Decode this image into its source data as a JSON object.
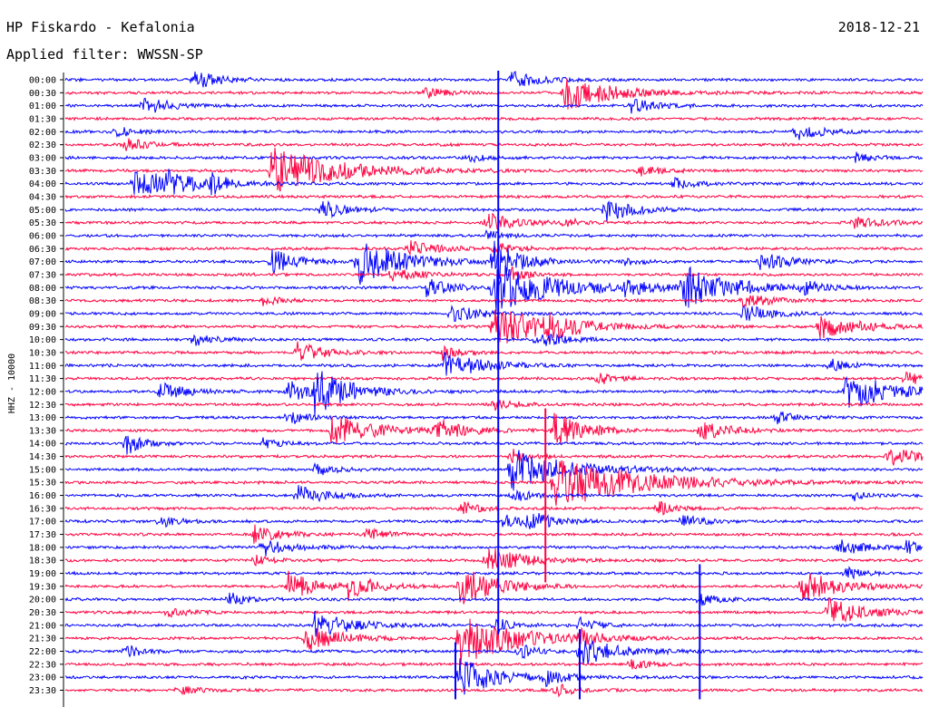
{
  "header": {
    "station": "HP Fiskardo - Kefalonia",
    "date": "2018-12-21",
    "filter": "Applied filter: WWSSN-SP"
  },
  "chart_data": {
    "type": "helicorder",
    "title": "HP Fiskardo - Kefalonia",
    "ylabel": "HHZ - 10000",
    "colors": [
      "#0000ff",
      "#ff0040"
    ],
    "rows": [
      "00:00",
      "00:30",
      "01:00",
      "01:30",
      "02:00",
      "02:30",
      "03:00",
      "03:30",
      "04:00",
      "04:30",
      "05:00",
      "05:30",
      "06:00",
      "06:30",
      "07:00",
      "07:30",
      "08:00",
      "08:30",
      "09:00",
      "09:30",
      "10:00",
      "10:30",
      "11:00",
      "11:30",
      "12:00",
      "12:30",
      "13:00",
      "13:30",
      "14:00",
      "14:30",
      "15:00",
      "15:30",
      "16:00",
      "16:30",
      "17:00",
      "17:30",
      "18:00",
      "18:30",
      "19:00",
      "19:30",
      "20:00",
      "20:30",
      "21:00",
      "21:30",
      "22:00",
      "22:30",
      "23:00",
      "23:30"
    ],
    "events": [
      {
        "row": 0,
        "x": 0.15,
        "a": 10,
        "d": 0.03
      },
      {
        "row": 0,
        "x": 0.52,
        "a": 9,
        "d": 0.03
      },
      {
        "row": 1,
        "x": 0.58,
        "a": 22,
        "d": 0.05
      },
      {
        "row": 1,
        "x": 0.42,
        "a": 6,
        "d": 0.02
      },
      {
        "row": 2,
        "x": 0.09,
        "a": 10,
        "d": 0.03
      },
      {
        "row": 2,
        "x": 0.66,
        "a": 8,
        "d": 0.03
      },
      {
        "row": 4,
        "x": 0.85,
        "a": 10,
        "d": 0.03
      },
      {
        "row": 4,
        "x": 0.06,
        "a": 6,
        "d": 0.02
      },
      {
        "row": 5,
        "x": 0.07,
        "a": 7,
        "d": 0.03
      },
      {
        "row": 6,
        "x": 0.47,
        "a": 5,
        "d": 0.02
      },
      {
        "row": 6,
        "x": 0.92,
        "a": 6,
        "d": 0.02
      },
      {
        "row": 7,
        "x": 0.24,
        "a": 28,
        "d": 0.07
      },
      {
        "row": 7,
        "x": 0.67,
        "a": 6,
        "d": 0.02
      },
      {
        "row": 8,
        "x": 0.08,
        "a": 16,
        "d": 0.05
      },
      {
        "row": 8,
        "x": 0.12,
        "a": 9,
        "d": 0.02
      },
      {
        "row": 8,
        "x": 0.17,
        "a": 9,
        "d": 0.02
      },
      {
        "row": 8,
        "x": 0.71,
        "a": 8,
        "d": 0.02
      },
      {
        "row": 10,
        "x": 0.3,
        "a": 10,
        "d": 0.03
      },
      {
        "row": 10,
        "x": 0.63,
        "a": 14,
        "d": 0.03
      },
      {
        "row": 11,
        "x": 0.49,
        "a": 12,
        "d": 0.03
      },
      {
        "row": 11,
        "x": 0.58,
        "a": 5,
        "d": 0.02
      },
      {
        "row": 11,
        "x": 0.92,
        "a": 8,
        "d": 0.03
      },
      {
        "row": 12,
        "x": 0.49,
        "a": 6,
        "d": 0.02
      },
      {
        "row": 13,
        "x": 0.4,
        "a": 9,
        "d": 0.03
      },
      {
        "row": 13,
        "x": 0.5,
        "a": 8,
        "d": 0.02
      },
      {
        "row": 14,
        "x": 0.24,
        "a": 14,
        "d": 0.03
      },
      {
        "row": 14,
        "x": 0.34,
        "a": 26,
        "d": 0.05
      },
      {
        "row": 14,
        "x": 0.5,
        "a": 22,
        "d": 0.03
      },
      {
        "row": 14,
        "x": 0.81,
        "a": 12,
        "d": 0.03
      },
      {
        "row": 14,
        "x": 0.65,
        "a": 5,
        "d": 0.02
      },
      {
        "row": 15,
        "x": 0.38,
        "a": 8,
        "d": 0.03
      },
      {
        "row": 15,
        "x": 0.52,
        "a": 8,
        "d": 0.02
      },
      {
        "row": 16,
        "x": 0.42,
        "a": 10,
        "d": 0.03
      },
      {
        "row": 16,
        "x": 0.5,
        "a": 26,
        "d": 0.07
      },
      {
        "row": 16,
        "x": 0.72,
        "a": 26,
        "d": 0.05
      },
      {
        "row": 16,
        "x": 0.65,
        "a": 9,
        "d": 0.03
      },
      {
        "row": 16,
        "x": 0.86,
        "a": 7,
        "d": 0.02
      },
      {
        "row": 17,
        "x": 0.23,
        "a": 6,
        "d": 0.02
      },
      {
        "row": 17,
        "x": 0.79,
        "a": 8,
        "d": 0.03
      },
      {
        "row": 18,
        "x": 0.45,
        "a": 10,
        "d": 0.03
      },
      {
        "row": 18,
        "x": 0.79,
        "a": 10,
        "d": 0.03
      },
      {
        "row": 19,
        "x": 0.5,
        "a": 24,
        "d": 0.06
      },
      {
        "row": 19,
        "x": 0.56,
        "a": 10,
        "d": 0.03
      },
      {
        "row": 19,
        "x": 0.88,
        "a": 16,
        "d": 0.04
      },
      {
        "row": 20,
        "x": 0.15,
        "a": 8,
        "d": 0.02
      },
      {
        "row": 20,
        "x": 0.55,
        "a": 9,
        "d": 0.03
      },
      {
        "row": 21,
        "x": 0.27,
        "a": 12,
        "d": 0.03
      },
      {
        "row": 21,
        "x": 0.44,
        "a": 8,
        "d": 0.02
      },
      {
        "row": 22,
        "x": 0.44,
        "a": 16,
        "d": 0.04
      },
      {
        "row": 22,
        "x": 0.89,
        "a": 8,
        "d": 0.02
      },
      {
        "row": 23,
        "x": 0.62,
        "a": 8,
        "d": 0.02
      },
      {
        "row": 23,
        "x": 0.98,
        "a": 8,
        "d": 0.02
      },
      {
        "row": 24,
        "x": 0.11,
        "a": 10,
        "d": 0.03
      },
      {
        "row": 24,
        "x": 0.26,
        "a": 12,
        "d": 0.03
      },
      {
        "row": 24,
        "x": 0.29,
        "a": 24,
        "d": 0.04
      },
      {
        "row": 24,
        "x": 0.91,
        "a": 22,
        "d": 0.05
      },
      {
        "row": 25,
        "x": 0.5,
        "a": 8,
        "d": 0.02
      },
      {
        "row": 26,
        "x": 0.26,
        "a": 8,
        "d": 0.02
      },
      {
        "row": 26,
        "x": 0.83,
        "a": 8,
        "d": 0.02
      },
      {
        "row": 27,
        "x": 0.31,
        "a": 18,
        "d": 0.05
      },
      {
        "row": 27,
        "x": 0.43,
        "a": 14,
        "d": 0.03
      },
      {
        "row": 27,
        "x": 0.74,
        "a": 12,
        "d": 0.03
      },
      {
        "row": 27,
        "x": 0.57,
        "a": 22,
        "d": 0.03
      },
      {
        "row": 28,
        "x": 0.07,
        "a": 14,
        "d": 0.02
      },
      {
        "row": 28,
        "x": 0.23,
        "a": 6,
        "d": 0.02
      },
      {
        "row": 29,
        "x": 0.96,
        "a": 12,
        "d": 0.03
      },
      {
        "row": 29,
        "x": 0.52,
        "a": 8,
        "d": 0.02
      },
      {
        "row": 30,
        "x": 0.29,
        "a": 8,
        "d": 0.02
      },
      {
        "row": 30,
        "x": 0.52,
        "a": 24,
        "d": 0.06
      },
      {
        "row": 31,
        "x": 0.57,
        "a": 30,
        "d": 0.09
      },
      {
        "row": 32,
        "x": 0.27,
        "a": 12,
        "d": 0.03
      },
      {
        "row": 32,
        "x": 0.52,
        "a": 8,
        "d": 0.02
      },
      {
        "row": 32,
        "x": 0.92,
        "a": 6,
        "d": 0.02
      },
      {
        "row": 33,
        "x": 0.46,
        "a": 8,
        "d": 0.02
      },
      {
        "row": 33,
        "x": 0.69,
        "a": 8,
        "d": 0.02
      },
      {
        "row": 34,
        "x": 0.11,
        "a": 7,
        "d": 0.02
      },
      {
        "row": 34,
        "x": 0.51,
        "a": 9,
        "d": 0.02
      },
      {
        "row": 34,
        "x": 0.54,
        "a": 10,
        "d": 0.03
      },
      {
        "row": 34,
        "x": 0.72,
        "a": 8,
        "d": 0.02
      },
      {
        "row": 35,
        "x": 0.22,
        "a": 10,
        "d": 0.03
      },
      {
        "row": 35,
        "x": 0.35,
        "a": 8,
        "d": 0.02
      },
      {
        "row": 36,
        "x": 0.23,
        "a": 10,
        "d": 0.03
      },
      {
        "row": 36,
        "x": 0.9,
        "a": 10,
        "d": 0.03
      },
      {
        "row": 36,
        "x": 0.98,
        "a": 7,
        "d": 0.02
      },
      {
        "row": 37,
        "x": 0.49,
        "a": 16,
        "d": 0.04
      },
      {
        "row": 37,
        "x": 0.22,
        "a": 6,
        "d": 0.02
      },
      {
        "row": 38,
        "x": 0.91,
        "a": 7,
        "d": 0.02
      },
      {
        "row": 39,
        "x": 0.26,
        "a": 16,
        "d": 0.03
      },
      {
        "row": 39,
        "x": 0.33,
        "a": 14,
        "d": 0.03
      },
      {
        "row": 39,
        "x": 0.86,
        "a": 18,
        "d": 0.04
      },
      {
        "row": 39,
        "x": 0.46,
        "a": 22,
        "d": 0.04
      },
      {
        "row": 40,
        "x": 0.19,
        "a": 8,
        "d": 0.02
      },
      {
        "row": 40,
        "x": 0.74,
        "a": 8,
        "d": 0.02
      },
      {
        "row": 41,
        "x": 0.89,
        "a": 16,
        "d": 0.04
      },
      {
        "row": 41,
        "x": 0.12,
        "a": 6,
        "d": 0.02
      },
      {
        "row": 42,
        "x": 0.29,
        "a": 16,
        "d": 0.04
      },
      {
        "row": 42,
        "x": 0.5,
        "a": 9,
        "d": 0.02
      },
      {
        "row": 42,
        "x": 0.6,
        "a": 8,
        "d": 0.02
      },
      {
        "row": 43,
        "x": 0.28,
        "a": 14,
        "d": 0.04
      },
      {
        "row": 43,
        "x": 0.46,
        "a": 30,
        "d": 0.06
      },
      {
        "row": 43,
        "x": 0.6,
        "a": 8,
        "d": 0.02
      },
      {
        "row": 44,
        "x": 0.07,
        "a": 8,
        "d": 0.02
      },
      {
        "row": 44,
        "x": 0.6,
        "a": 16,
        "d": 0.04
      },
      {
        "row": 44,
        "x": 0.53,
        "a": 8,
        "d": 0.02
      },
      {
        "row": 45,
        "x": 0.66,
        "a": 6,
        "d": 0.02
      },
      {
        "row": 46,
        "x": 0.46,
        "a": 22,
        "d": 0.04
      },
      {
        "row": 46,
        "x": 0.56,
        "a": 8,
        "d": 0.02
      },
      {
        "row": 47,
        "x": 0.13,
        "a": 6,
        "d": 0.02
      },
      {
        "row": 47,
        "x": 0.57,
        "a": 8,
        "d": 0.02
      }
    ],
    "spikes": [
      {
        "x": 0.505,
        "from": 0,
        "to": 42,
        "color": 0
      },
      {
        "x": 0.56,
        "from": 26,
        "to": 38,
        "color": 1
      },
      {
        "x": 0.74,
        "from": 38,
        "to": 47,
        "color": 0
      },
      {
        "x": 0.6,
        "from": 43,
        "to": 47,
        "color": 0
      },
      {
        "x": 0.455,
        "from": 44,
        "to": 47,
        "color": 0
      }
    ]
  }
}
